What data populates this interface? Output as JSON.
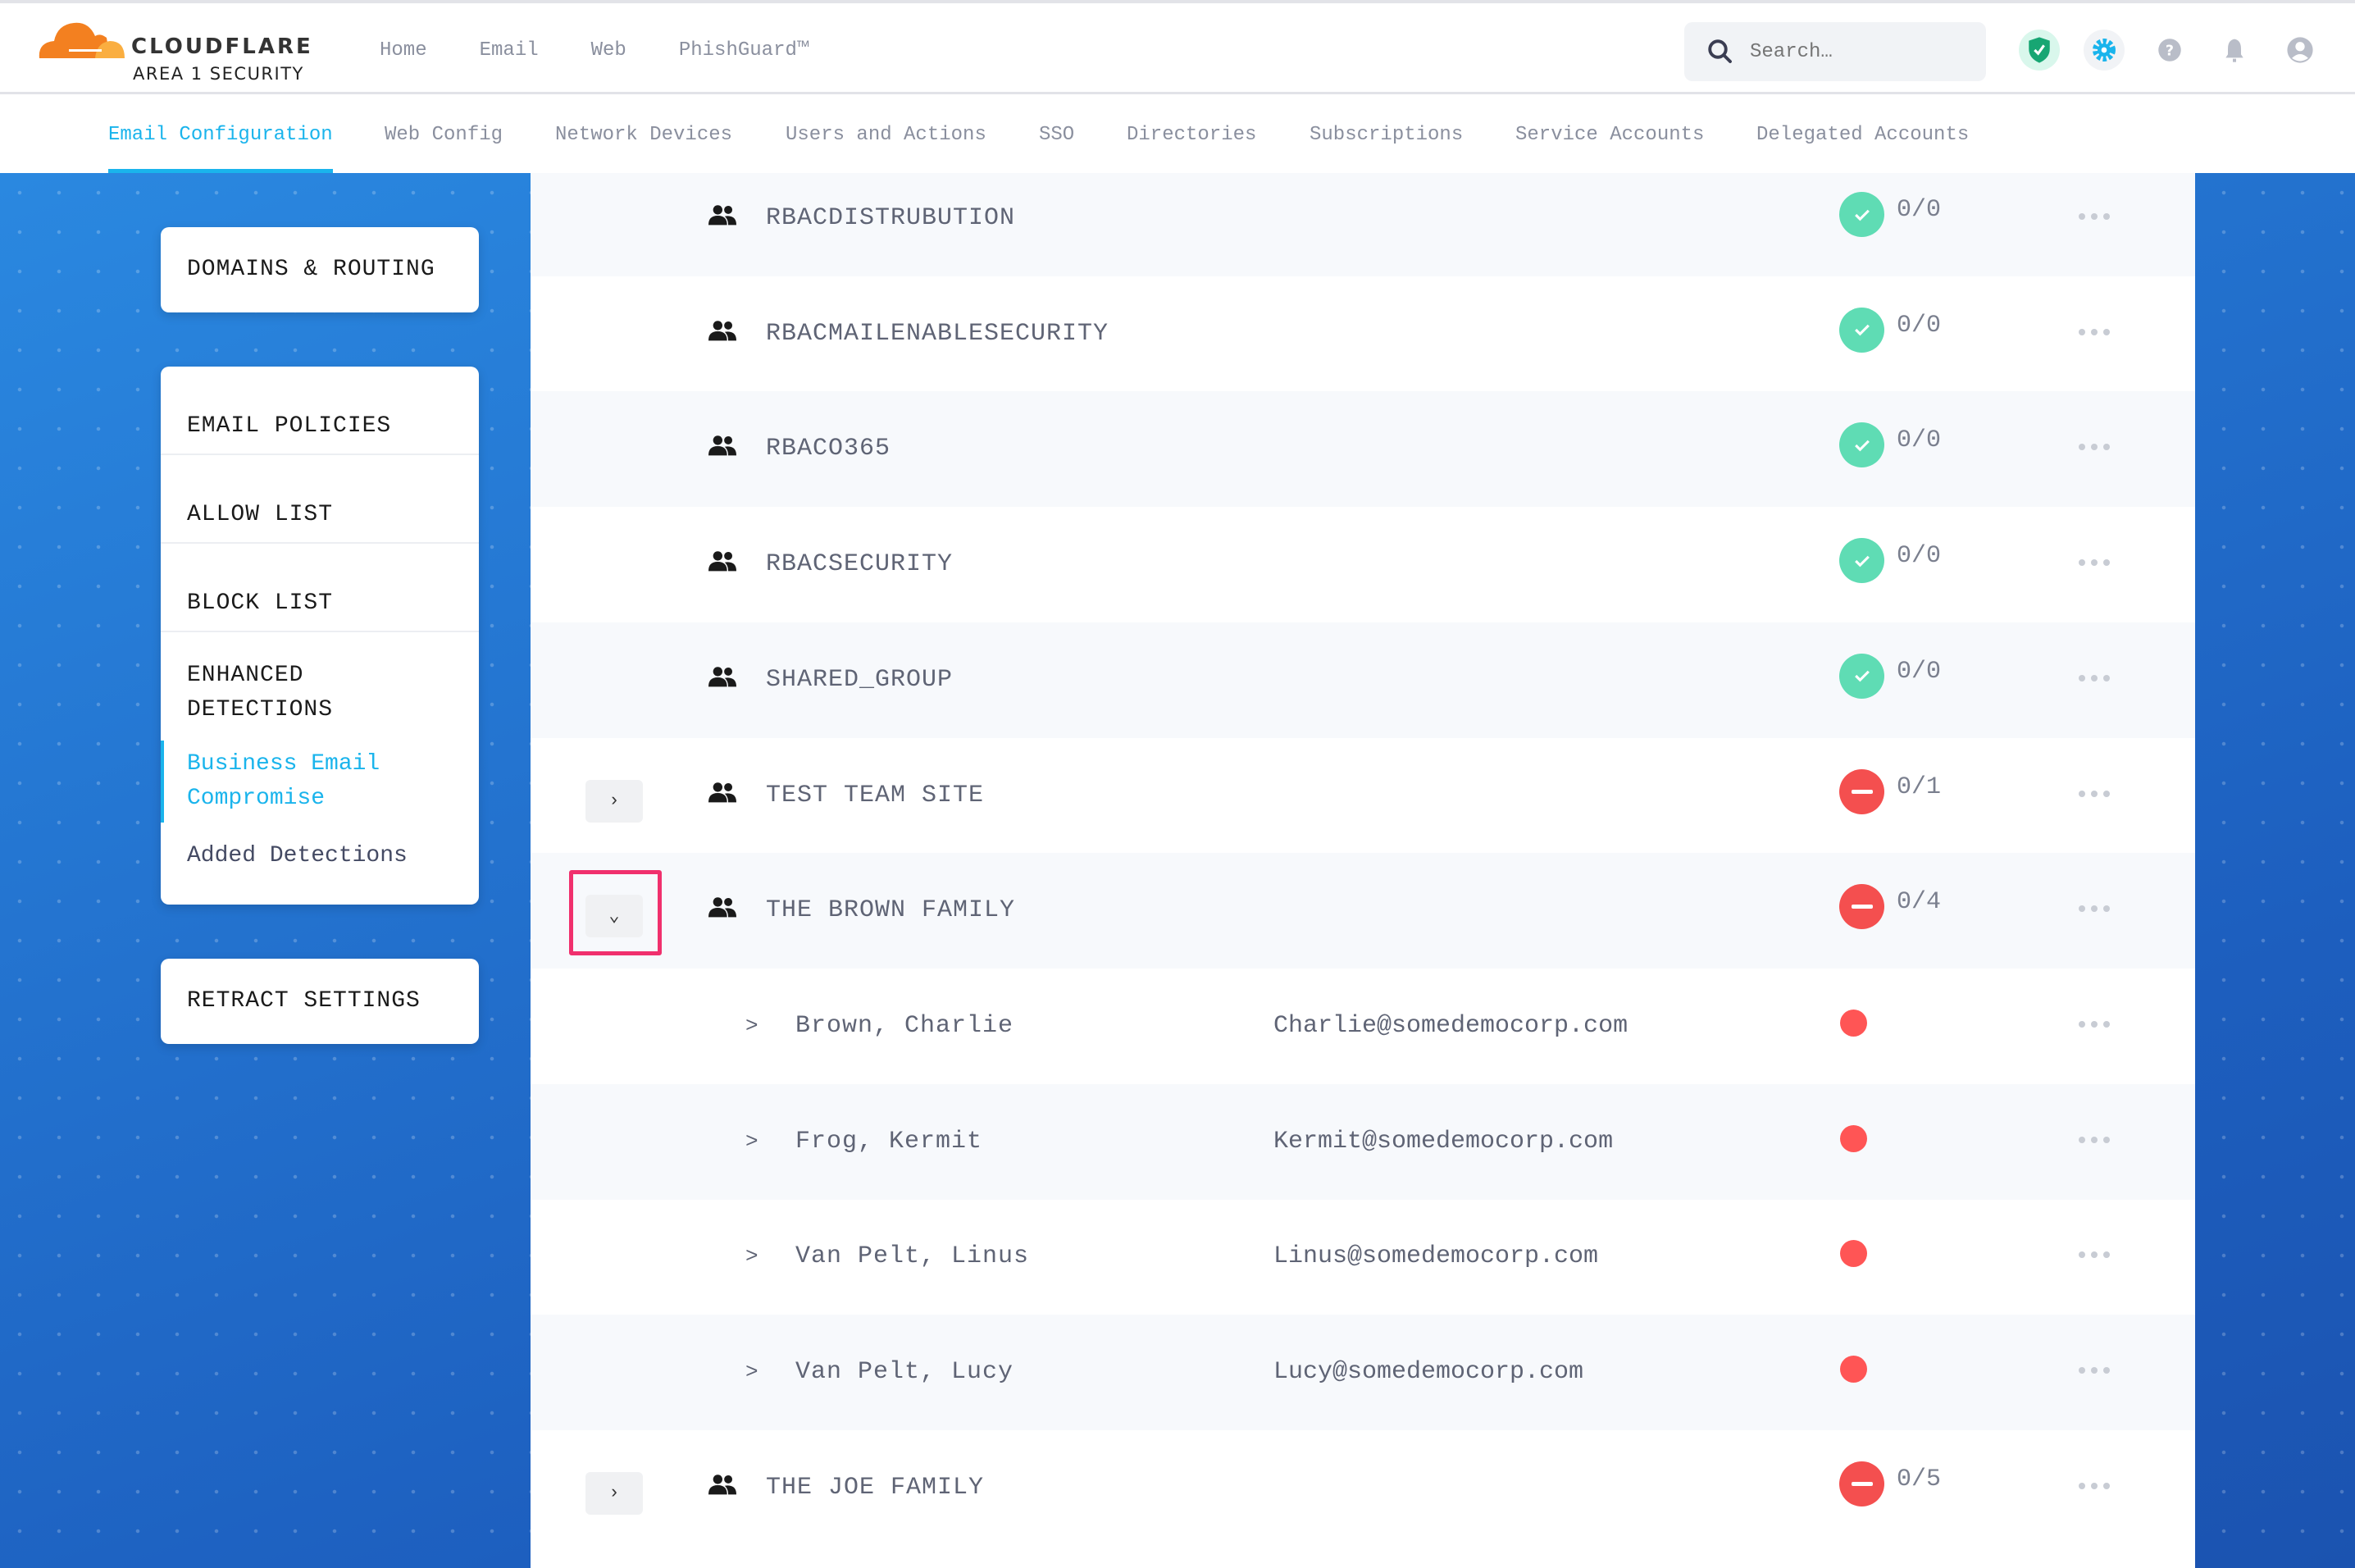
{
  "brand": {
    "name": "CLOUDFLARE",
    "sub": "AREA 1 SECURITY",
    "colors": {
      "orange": "#f38020",
      "light_orange": "#faae40"
    }
  },
  "topnav": [
    {
      "label": "Home"
    },
    {
      "label": "Email"
    },
    {
      "label": "Web"
    },
    {
      "label": "PhishGuard™"
    }
  ],
  "search": {
    "placeholder": "Search…"
  },
  "toolbar_icons": [
    "shield-check-icon",
    "gear-icon",
    "help-icon",
    "bell-icon",
    "user-icon"
  ],
  "subnav": {
    "active": "Email Configuration",
    "tabs": [
      {
        "label": "Email Configuration"
      },
      {
        "label": "Web Config"
      },
      {
        "label": "Network Devices"
      },
      {
        "label": "Users and Actions"
      },
      {
        "label": "SSO"
      },
      {
        "label": "Directories"
      },
      {
        "label": "Subscriptions"
      },
      {
        "label": "Service Accounts"
      },
      {
        "label": "Delegated Accounts"
      }
    ]
  },
  "sidebar": {
    "domains": "DOMAINS & ROUTING",
    "email_policies": "EMAIL POLICIES",
    "allow_list": "ALLOW LIST",
    "block_list": "BLOCK LIST",
    "enhanced_1": "ENHANCED",
    "enhanced_2": "DETECTIONS",
    "bec_1": "Business Email",
    "bec_2": "Compromise",
    "added": "Added Detections",
    "retract": "RETRACT SETTINGS",
    "accent": "#1ab4ec"
  },
  "rows": [
    {
      "type": "group",
      "name": "RBACDISTRUBUTION",
      "status": "ok",
      "count": "0/0"
    },
    {
      "type": "group",
      "name": "RBACMAILENABLESECURITY",
      "status": "ok",
      "count": "0/0"
    },
    {
      "type": "group",
      "name": "RBACO365",
      "status": "ok",
      "count": "0/0"
    },
    {
      "type": "group",
      "name": "RBACSECURITY",
      "status": "ok",
      "count": "0/0"
    },
    {
      "type": "group",
      "name": "SHARED_GROUP",
      "status": "ok",
      "count": "0/0"
    },
    {
      "type": "group",
      "name": "TEST TEAM SITE",
      "status": "blocked",
      "count": "0/1",
      "expandable": true,
      "expanded": false
    },
    {
      "type": "group",
      "name": "THE BROWN FAMILY",
      "status": "blocked",
      "count": "0/4",
      "expandable": true,
      "expanded": true,
      "highlighted": true
    },
    {
      "type": "member",
      "name": "Brown, Charlie",
      "email": "Charlie@somedemocorp.com",
      "status": "error"
    },
    {
      "type": "member",
      "name": "Frog, Kermit",
      "email": "Kermit@somedemocorp.com",
      "status": "error"
    },
    {
      "type": "member",
      "name": "Van Pelt, Linus",
      "email": "Linus@somedemocorp.com",
      "status": "error"
    },
    {
      "type": "member",
      "name": "Van Pelt, Lucy",
      "email": "Lucy@somedemocorp.com",
      "status": "error"
    },
    {
      "type": "group",
      "name": "THE JOE FAMILY",
      "status": "blocked",
      "count": "0/5",
      "expandable": true,
      "expanded": false
    }
  ],
  "status_colors": {
    "ok": "#5fdcb4",
    "blocked": "#f44f4f",
    "error": "#f55"
  },
  "highlight_color": "#f0306d"
}
